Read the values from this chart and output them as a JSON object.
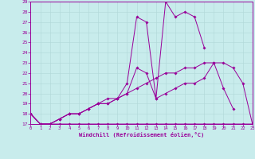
{
  "xlabel": "Windchill (Refroidissement éolien,°C)",
  "bg_color": "#c8ecec",
  "grid_color": "#b0d8d8",
  "line_color": "#990099",
  "xlim": [
    0,
    23
  ],
  "ylim": [
    17,
    29
  ],
  "ytick_vals": [
    17,
    18,
    19,
    20,
    21,
    22,
    23,
    24,
    25,
    26,
    27,
    28,
    29
  ],
  "xtick_vals": [
    0,
    1,
    2,
    3,
    4,
    5,
    6,
    7,
    8,
    9,
    10,
    11,
    12,
    13,
    14,
    15,
    16,
    17,
    18,
    19,
    20,
    21,
    22,
    23
  ],
  "series": [
    {
      "x": [
        0,
        1,
        2,
        3,
        4,
        5,
        6,
        7,
        8,
        9,
        10,
        11,
        12,
        13,
        14,
        15,
        16,
        17,
        18,
        19,
        20,
        21,
        22,
        23
      ],
      "y": [
        18,
        17,
        17,
        17,
        17,
        17,
        17,
        17,
        17,
        17,
        17,
        17,
        17,
        17,
        17,
        17,
        17,
        17,
        17,
        17,
        17,
        17,
        17,
        17
      ]
    },
    {
      "x": [
        0,
        1,
        2,
        3,
        4,
        5,
        6,
        7,
        8,
        9,
        10,
        11,
        12,
        13,
        14,
        15,
        16,
        17,
        18,
        19,
        20,
        21,
        22,
        23
      ],
      "y": [
        18,
        17,
        17,
        17.5,
        18,
        18,
        18.5,
        19,
        19,
        19.5,
        20,
        20.5,
        21,
        21.5,
        22,
        22,
        22.5,
        22.5,
        23,
        23,
        23,
        22.5,
        21,
        17
      ]
    },
    {
      "x": [
        0,
        1,
        2,
        3,
        4,
        5,
        6,
        7,
        8,
        9,
        10,
        11,
        12,
        13,
        14,
        15,
        16,
        17,
        18,
        19,
        20,
        21
      ],
      "y": [
        18,
        17,
        17,
        17.5,
        18,
        18,
        18.5,
        19,
        19.5,
        19.5,
        20,
        22.5,
        22,
        19.5,
        20,
        20.5,
        21,
        21,
        21.5,
        23,
        20.5,
        18.5
      ]
    },
    {
      "x": [
        0,
        1,
        2,
        3,
        4,
        5,
        6,
        7,
        8,
        9,
        10,
        11,
        12,
        13,
        14,
        15,
        16,
        17,
        18
      ],
      "y": [
        18,
        17,
        17,
        17.5,
        18,
        18,
        18.5,
        19,
        19,
        19.5,
        21,
        27.5,
        27,
        19.5,
        29,
        27.5,
        28,
        27.5,
        24.5
      ]
    }
  ]
}
